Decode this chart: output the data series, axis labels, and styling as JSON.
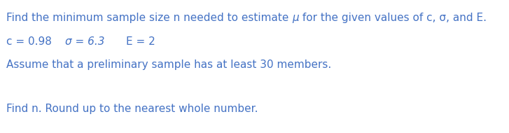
{
  "background_color": "#ffffff",
  "text_color": "#4472c4",
  "line1_part1": "Find the minimum sample size n needed to estimate ",
  "line1_mu": "μ",
  "line1_part2": " for the given values of c, σ, and E.",
  "line2_c": "c = 0.98",
  "line2_sigma": "σ = 6.3",
  "line2_E": "E = 2",
  "line3": "Assume that a preliminary sample has at least 30 members.",
  "line4": "Find n. Round up to the nearest whole number.",
  "font_size": 11.0,
  "line2_font_size": 11.0,
  "fig_width": 7.27,
  "fig_height": 1.9,
  "dpi": 100
}
